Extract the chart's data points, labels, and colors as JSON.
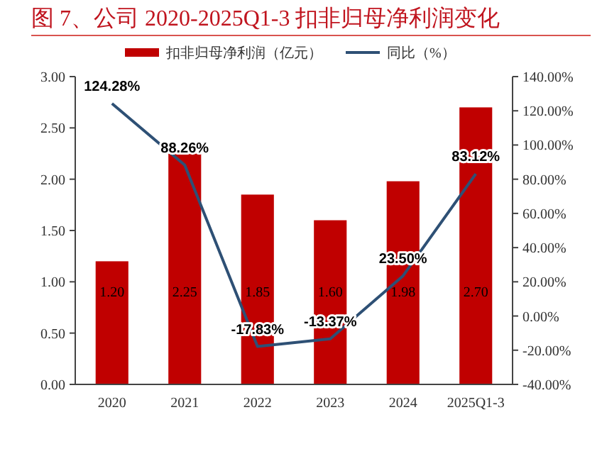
{
  "chart_data": {
    "type": "bar",
    "title": "图 7、公司 2020-2025Q1-3 扣非归母净利润变化",
    "categories": [
      "2020",
      "2021",
      "2022",
      "2023",
      "2024",
      "2025Q1-3"
    ],
    "series": [
      {
        "name": "扣非归母净利润（亿元）",
        "color": "#c00000",
        "values": [
          1.2,
          2.25,
          1.85,
          1.6,
          1.98,
          2.7
        ],
        "value_labels": [
          "1.20",
          "2.25",
          "1.85",
          "1.60",
          "1.98",
          "2.70"
        ]
      },
      {
        "name": "同比（%）",
        "type": "line",
        "axis": "y2",
        "color": "#2e5075",
        "values": [
          124.28,
          88.26,
          -17.83,
          -13.37,
          23.5,
          83.12
        ],
        "value_labels": [
          "124.28%",
          "88.26%",
          "-17.83%",
          "-13.37%",
          "23.50%",
          "83.12%"
        ]
      }
    ],
    "ylim": [
      0,
      3
    ],
    "yticks": [
      {
        "value": 0,
        "label": "0.00"
      },
      {
        "value": 0.5,
        "label": "0.50"
      },
      {
        "value": 1,
        "label": "1.00"
      },
      {
        "value": 1.5,
        "label": "1.50"
      },
      {
        "value": 2,
        "label": "2.00"
      },
      {
        "value": 2.5,
        "label": "2.50"
      },
      {
        "value": 3,
        "label": "3.00"
      }
    ],
    "y2lim": [
      -40,
      140
    ],
    "y2ticks": [
      {
        "value": -40,
        "label": "-40.00%"
      },
      {
        "value": -20,
        "label": "-20.00%"
      },
      {
        "value": 0,
        "label": "0.00%"
      },
      {
        "value": 20,
        "label": "20.00%"
      },
      {
        "value": 40,
        "label": "40.00%"
      },
      {
        "value": 60,
        "label": "60.00%"
      },
      {
        "value": 80,
        "label": "80.00%"
      },
      {
        "value": 100,
        "label": "100.00%"
      },
      {
        "value": 120,
        "label": "120.00%"
      },
      {
        "value": 140,
        "label": "140.00%"
      }
    ],
    "legend": "top",
    "grid": false,
    "marker": "none",
    "line_style": "solid"
  }
}
